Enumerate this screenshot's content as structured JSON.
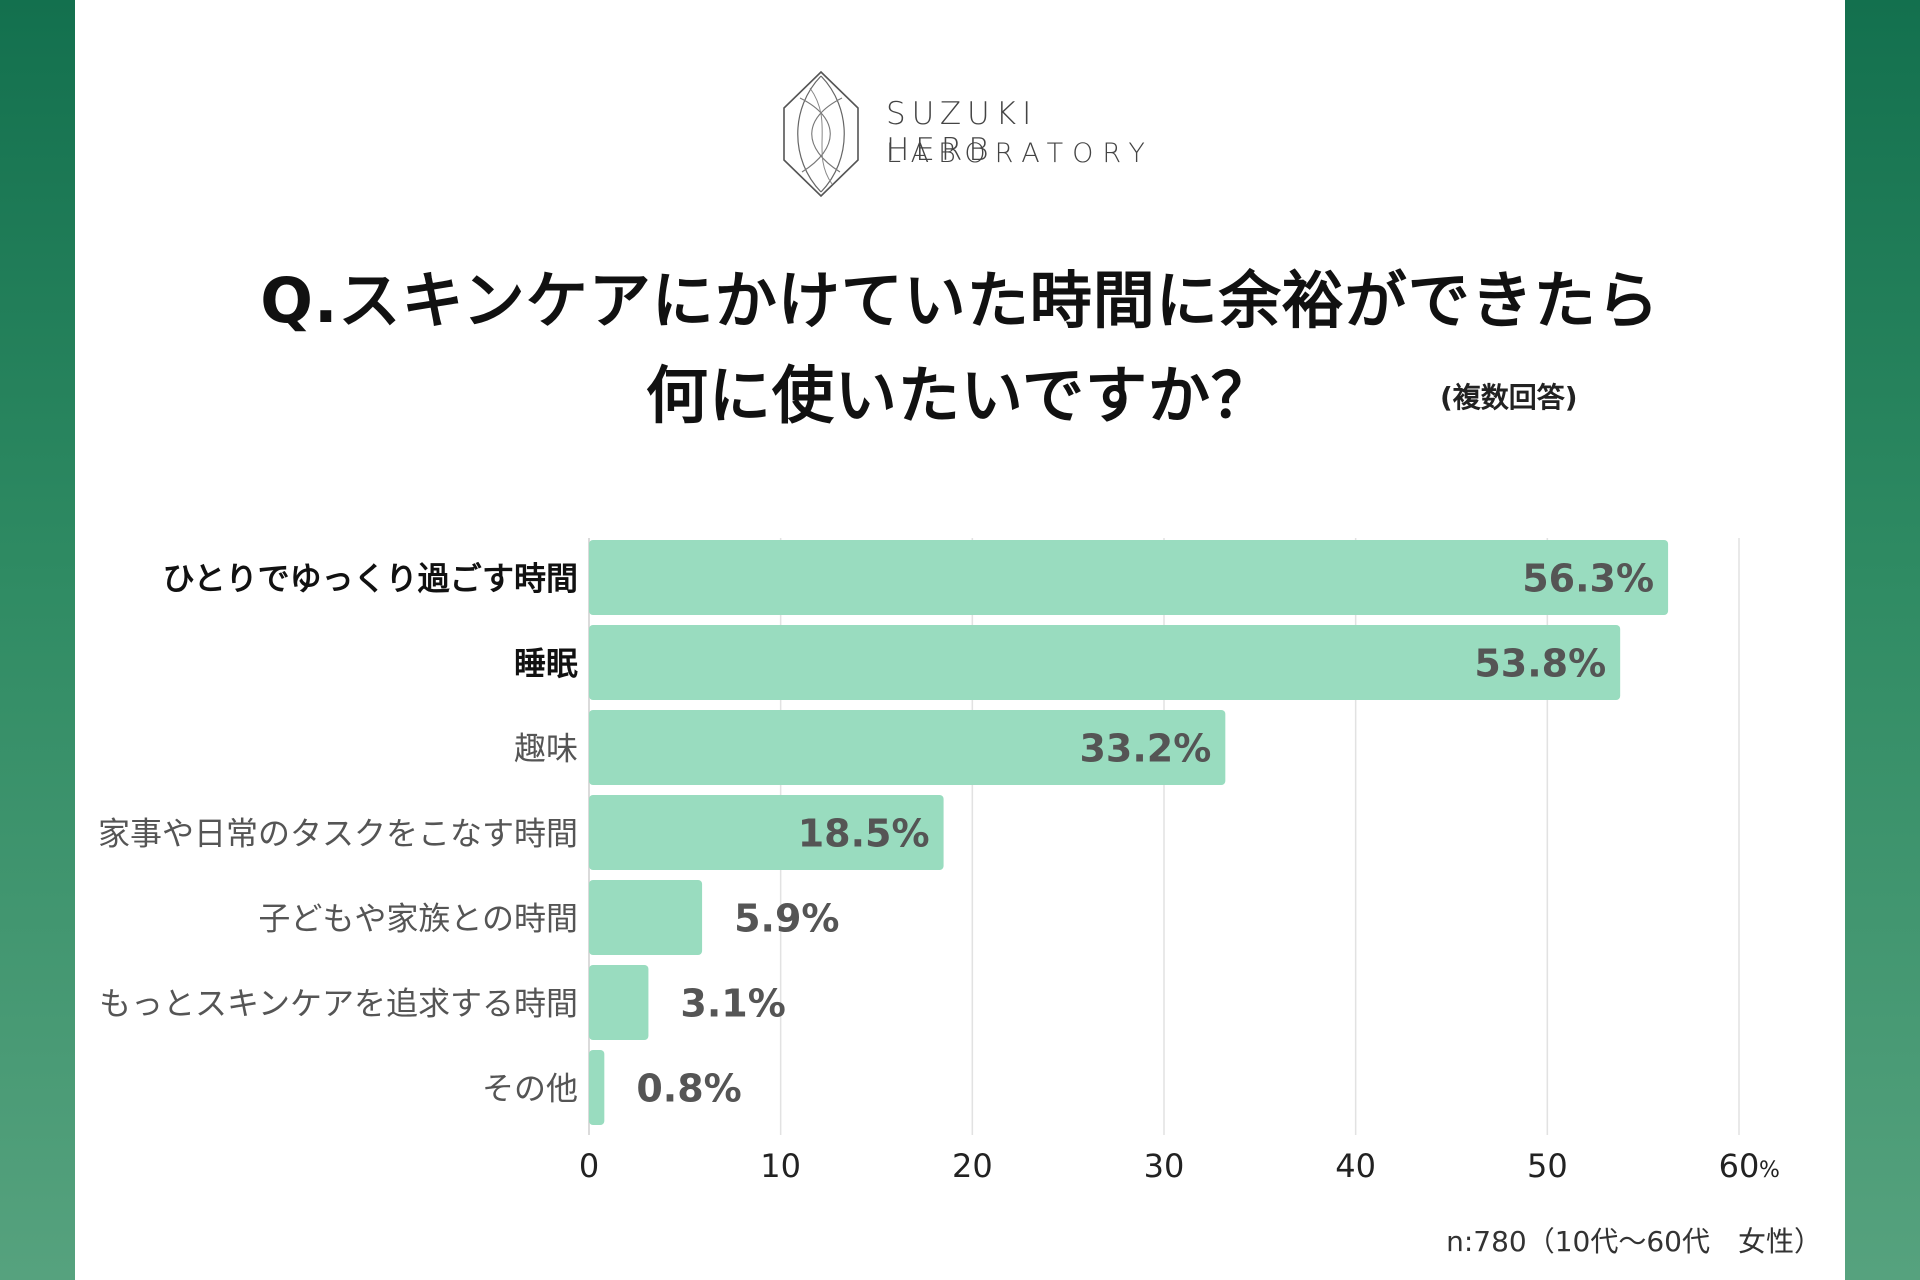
{
  "brand": {
    "line1": "SUZUKI HERB",
    "line2": "LABORATORY",
    "icon": "herb-leaf-logo"
  },
  "question": {
    "line1": "Q.スキンケアにかけていた時間に余裕ができたら",
    "line2": "何に使いたいですか？",
    "note": "(複数回答)"
  },
  "footnote": "n:780（10代〜60代　女性）",
  "colors": {
    "bar": "#99dcbf",
    "value_label": "#555555",
    "grid": "#e2e2e2",
    "category_bold": "#111111",
    "category_normal": "#555555"
  },
  "chart_data": {
    "type": "bar",
    "orientation": "horizontal",
    "categories": [
      "ひとりでゆっくり過ごす時間",
      "睡眠",
      "趣味",
      "家事や日常のタスクをこなす時間",
      "子どもや家族との時間",
      "もっとスキンケアを追求する時間",
      "その他"
    ],
    "bold_categories": [
      true,
      true,
      false,
      false,
      false,
      false,
      false
    ],
    "values": [
      56.3,
      53.8,
      33.2,
      18.5,
      5.9,
      3.1,
      0.8
    ],
    "value_labels": [
      "56.3%",
      "53.8%",
      "33.2%",
      "18.5%",
      "5.9%",
      "3.1%",
      "0.8%"
    ],
    "xlim": [
      0,
      60
    ],
    "xticks": [
      0,
      10,
      20,
      30,
      40,
      50,
      60
    ],
    "xtick_labels": [
      "0",
      "10",
      "20",
      "30",
      "40",
      "50",
      "60"
    ],
    "xunit": "%",
    "grid": true
  }
}
